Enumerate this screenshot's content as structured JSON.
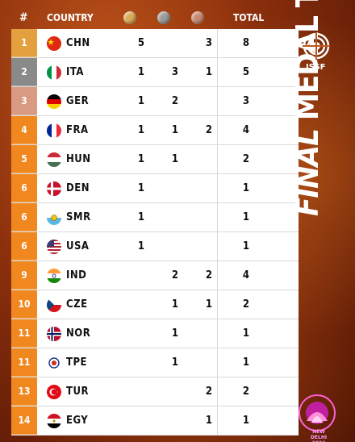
{
  "header": {
    "rank": "#",
    "country": "COUNTRY",
    "total": "TOTAL"
  },
  "medal_icons": [
    "gold-medal",
    "silver-medal",
    "bronze-medal"
  ],
  "side_title": {
    "final": "FINAL",
    "rest": " MEDAL TABLE"
  },
  "issf": {
    "label": "ISSF"
  },
  "event": {
    "label": "NEW DELHI 2024"
  },
  "rank_colors": {
    "1": "#e4a03e",
    "2": "#8a8a8a",
    "3": "#d89a80",
    "other": "#f0871f"
  },
  "rows": [
    {
      "rank": "1",
      "code": "CHN",
      "flag": "china-flag",
      "gold": "5",
      "silver": "",
      "bronze": "3",
      "total": "8"
    },
    {
      "rank": "2",
      "code": "ITA",
      "flag": "italy-flag",
      "gold": "1",
      "silver": "3",
      "bronze": "1",
      "total": "5"
    },
    {
      "rank": "3",
      "code": "GER",
      "flag": "germany-flag",
      "gold": "1",
      "silver": "2",
      "bronze": "",
      "total": "3"
    },
    {
      "rank": "4",
      "code": "FRA",
      "flag": "france-flag",
      "gold": "1",
      "silver": "1",
      "bronze": "2",
      "total": "4"
    },
    {
      "rank": "5",
      "code": "HUN",
      "flag": "hungary-flag",
      "gold": "1",
      "silver": "1",
      "bronze": "",
      "total": "2"
    },
    {
      "rank": "6",
      "code": "DEN",
      "flag": "denmark-flag",
      "gold": "1",
      "silver": "",
      "bronze": "",
      "total": "1"
    },
    {
      "rank": "6",
      "code": "SMR",
      "flag": "san-marino-flag",
      "gold": "1",
      "silver": "",
      "bronze": "",
      "total": "1"
    },
    {
      "rank": "6",
      "code": "USA",
      "flag": "usa-flag",
      "gold": "1",
      "silver": "",
      "bronze": "",
      "total": "1"
    },
    {
      "rank": "9",
      "code": "IND",
      "flag": "india-flag",
      "gold": "",
      "silver": "2",
      "bronze": "2",
      "total": "4"
    },
    {
      "rank": "10",
      "code": "CZE",
      "flag": "czechia-flag",
      "gold": "",
      "silver": "1",
      "bronze": "1",
      "total": "2"
    },
    {
      "rank": "11",
      "code": "NOR",
      "flag": "norway-flag",
      "gold": "",
      "silver": "1",
      "bronze": "",
      "total": "1"
    },
    {
      "rank": "11",
      "code": "TPE",
      "flag": "chinese-taipei-flag",
      "gold": "",
      "silver": "1",
      "bronze": "",
      "total": "1"
    },
    {
      "rank": "13",
      "code": "TUR",
      "flag": "turkey-flag",
      "gold": "",
      "silver": "",
      "bronze": "2",
      "total": "2"
    },
    {
      "rank": "14",
      "code": "EGY",
      "flag": "egypt-flag",
      "gold": "",
      "silver": "",
      "bronze": "1",
      "total": "1"
    }
  ]
}
